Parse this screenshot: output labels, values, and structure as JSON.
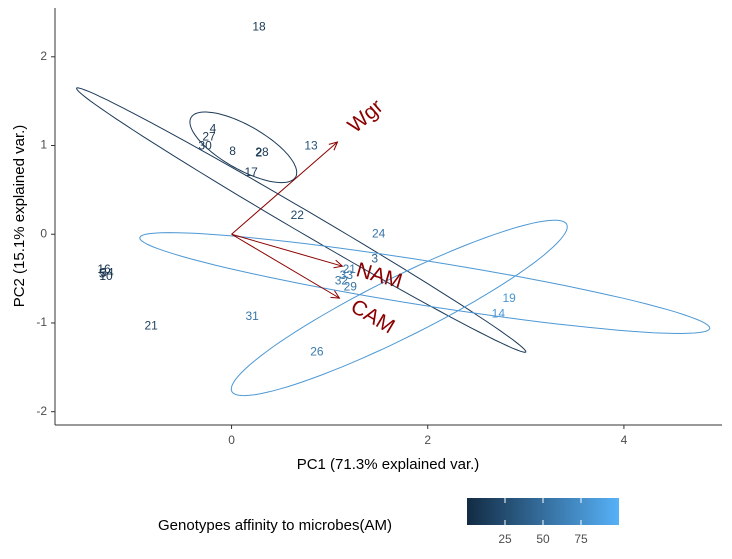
{
  "chart_data": {
    "type": "scatter",
    "xlabel": "PC1 (71.3% explained var.)",
    "ylabel": "PC2 (15.1% explained var.)",
    "xlim": [
      -1.8,
      5.0
    ],
    "ylim": [
      -2.15,
      2.55
    ],
    "x_ticks": [
      0,
      2,
      4
    ],
    "y_ticks": [
      -2,
      -1,
      0,
      1,
      2
    ],
    "grid": false,
    "color_scale": {
      "low": "#132b43",
      "high": "#56b1f7",
      "min": 0,
      "max": 100
    },
    "points": [
      {
        "label": "18",
        "x": 0.28,
        "y": 2.33,
        "am": 10
      },
      {
        "label": "4",
        "x": -0.19,
        "y": 1.18,
        "am": 10
      },
      {
        "label": "27",
        "x": -0.23,
        "y": 1.09,
        "am": 10
      },
      {
        "label": "30",
        "x": -0.27,
        "y": 0.99,
        "am": 10
      },
      {
        "label": "8",
        "x": 0.01,
        "y": 0.93,
        "am": 12
      },
      {
        "label": "28",
        "x": 0.31,
        "y": 0.92,
        "am": 10
      },
      {
        "label": "2",
        "x": 0.28,
        "y": 0.91,
        "am": 12
      },
      {
        "label": "17",
        "x": 0.2,
        "y": 0.69,
        "am": 12
      },
      {
        "label": "13",
        "x": 0.81,
        "y": 0.99,
        "am": 30
      },
      {
        "label": "22",
        "x": 0.67,
        "y": 0.21,
        "am": 20
      },
      {
        "label": "24",
        "x": 1.5,
        "y": 0.0,
        "am": 55
      },
      {
        "label": "3",
        "x": 1.46,
        "y": -0.28,
        "am": 40
      },
      {
        "label": "21",
        "x": 1.2,
        "y": -0.4,
        "am": 55
      },
      {
        "label": "33",
        "x": 1.17,
        "y": -0.47,
        "am": 55
      },
      {
        "label": "32",
        "x": 1.12,
        "y": -0.53,
        "am": 55
      },
      {
        "label": "29",
        "x": 1.21,
        "y": -0.6,
        "am": 55
      },
      {
        "label": "19",
        "x": 2.83,
        "y": -0.73,
        "am": 80
      },
      {
        "label": "14",
        "x": 2.72,
        "y": -0.9,
        "am": 80
      },
      {
        "label": "31",
        "x": 0.21,
        "y": -0.93,
        "am": 55
      },
      {
        "label": "21",
        "x": -0.82,
        "y": -1.04,
        "am": 15
      },
      {
        "label": "26",
        "x": 0.87,
        "y": -1.33,
        "am": 60
      },
      {
        "label": "16",
        "x": -1.3,
        "y": -0.4,
        "am": 5
      },
      {
        "label": "34",
        "x": -1.27,
        "y": -0.44,
        "am": 5
      },
      {
        "label": "5",
        "x": -1.32,
        "y": -0.45,
        "am": 5
      },
      {
        "label": "10",
        "x": -1.28,
        "y": -0.48,
        "am": 5
      }
    ],
    "arrows": [
      {
        "label": "Wgr",
        "x": 1.08,
        "y": 1.04
      },
      {
        "label": "NAM",
        "x": 1.13,
        "y": -0.36
      },
      {
        "label": "CAM",
        "x": 1.1,
        "y": -0.72
      }
    ],
    "arrow_color": "#8b0000",
    "ellipses": [
      {
        "cx": 0.71,
        "cy": 0.16,
        "rx": 2.73,
        "ry": 0.12,
        "angle_deg": -33,
        "color": "#1c3a58"
      },
      {
        "cx": 0.12,
        "cy": 0.98,
        "rx": 0.63,
        "ry": 0.24,
        "angle_deg": -33,
        "color": "#1c3a58"
      },
      {
        "cx": 1.97,
        "cy": -0.55,
        "rx": 2.95,
        "ry": 0.25,
        "angle_deg": -10,
        "color": "#4d98d4"
      },
      {
        "cx": 1.71,
        "cy": -0.83,
        "rx": 1.95,
        "ry": 0.33,
        "angle_deg": 29,
        "color": "#4d98d4"
      }
    ],
    "legend": {
      "title": "Genotypes affinity to microbes(AM)",
      "ticks": [
        25,
        50,
        75
      ],
      "placement": "bottom"
    }
  }
}
